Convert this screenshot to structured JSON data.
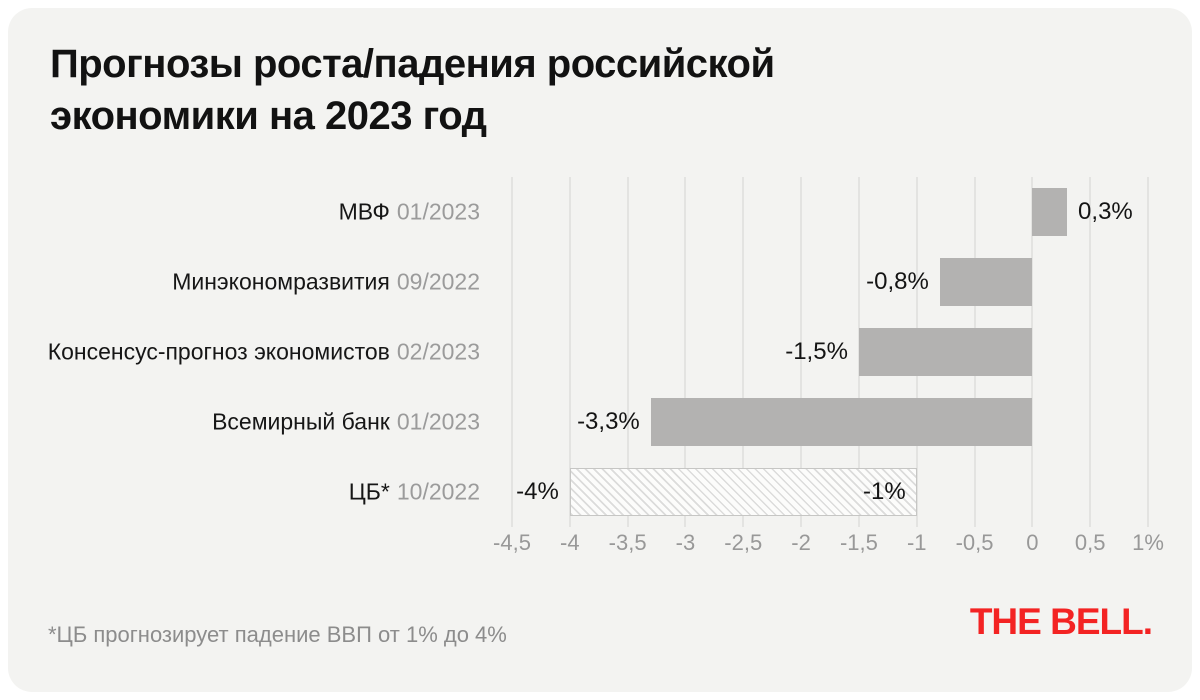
{
  "card": {
    "title": "Прогнозы роста/падения российской\nэкономики на 2023 год",
    "footnote": "*ЦБ прогнозирует падение ВВП от 1% до 4%",
    "logo": "THE BELL."
  },
  "chart_data": {
    "type": "bar",
    "orientation": "horizontal",
    "title": "Прогнозы роста/падения российской экономики на 2023 год",
    "unit": "% GDP growth forecast for 2023",
    "rows": [
      {
        "source": "МВФ",
        "date": "01/2023",
        "value": 0.3,
        "bar": [
          0,
          0.3
        ],
        "style": "solid",
        "value_labels": [
          {
            "text": "0,3%",
            "position": "outside-right"
          }
        ]
      },
      {
        "source": "Минэкономразвития",
        "date": "09/2022",
        "value": -0.8,
        "bar": [
          -0.8,
          0
        ],
        "style": "solid",
        "value_labels": [
          {
            "text": "-0,8%",
            "position": "outside-left"
          }
        ]
      },
      {
        "source": "Консенсус-прогноз экономистов",
        "date": "02/2023",
        "value": -1.5,
        "bar": [
          -1.5,
          0
        ],
        "style": "solid",
        "value_labels": [
          {
            "text": "-1,5%",
            "position": "outside-left"
          }
        ]
      },
      {
        "source": "Всемирный банк",
        "date": "01/2023",
        "value": -3.3,
        "bar": [
          -3.3,
          0
        ],
        "style": "solid",
        "value_labels": [
          {
            "text": "-3,3%",
            "position": "outside-left"
          }
        ]
      },
      {
        "source": "ЦБ*",
        "date": "10/2022",
        "value_range": [
          -4,
          -1
        ],
        "bar": [
          -4,
          -1
        ],
        "style": "hatched",
        "value_labels": [
          {
            "text": "-4%",
            "position": "outside-left"
          },
          {
            "text": "-1%",
            "position": "inside-right"
          }
        ]
      }
    ],
    "x_axis": {
      "min": -4.5,
      "max": 1,
      "step": 0.5,
      "grid": true,
      "tick_labels": [
        "-4,5",
        "-4",
        "-3,5",
        "-3",
        "-2,5",
        "-2",
        "-1,5",
        "-1",
        "-0,5",
        "0",
        "0,5",
        "1%"
      ]
    },
    "legend": null,
    "colors": {
      "bar": "#b3b2b1",
      "background": "#f3f3f1",
      "grid": "#e3e3e1",
      "value_label": "#141414",
      "source_label": "#161616",
      "date_label": "#9b9b9b",
      "tick_label": "#989898",
      "footnote": "#8c8c8c",
      "logo": "#f32323"
    }
  }
}
